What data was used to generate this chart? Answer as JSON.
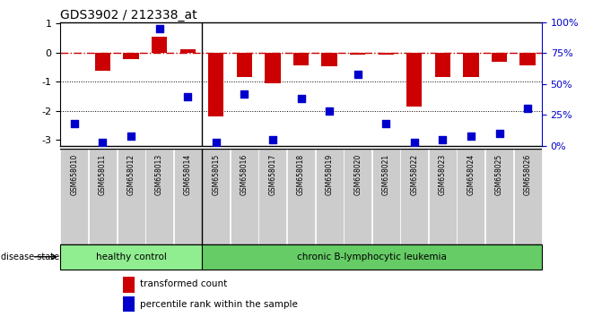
{
  "title": "GDS3902 / 212338_at",
  "samples": [
    "GSM658010",
    "GSM658011",
    "GSM658012",
    "GSM658013",
    "GSM658014",
    "GSM658015",
    "GSM658016",
    "GSM658017",
    "GSM658018",
    "GSM658019",
    "GSM658020",
    "GSM658021",
    "GSM658022",
    "GSM658023",
    "GSM658024",
    "GSM658025",
    "GSM658026"
  ],
  "bar_values": [
    0.0,
    -0.62,
    -0.22,
    0.55,
    0.13,
    -2.2,
    -0.82,
    -1.05,
    -0.42,
    -0.48,
    -0.05,
    -0.05,
    -1.85,
    -0.82,
    -0.82,
    -0.32,
    -0.42
  ],
  "percentile_values": [
    18,
    3,
    8,
    95,
    40,
    3,
    42,
    5,
    38,
    28,
    58,
    18,
    3,
    5,
    8,
    10,
    30
  ],
  "healthy_count": 5,
  "ylim_left": [
    -3.2,
    1.05
  ],
  "ylim_right": [
    0,
    100
  ],
  "bar_color": "#cc0000",
  "dot_color": "#0000cc",
  "healthy_color": "#90ee90",
  "leukemia_color": "#66cc66",
  "sample_bg_color": "#cccccc",
  "refline_y": 0,
  "dotted_lines": [
    -1,
    -2
  ],
  "left_ticks": [
    -3,
    -2,
    -1,
    0,
    1
  ],
  "right_ticks": [
    0,
    25,
    50,
    75,
    100
  ],
  "right_tick_labels": [
    "0%",
    "25%",
    "50%",
    "75%",
    "100%"
  ],
  "disease_state_label": "disease state",
  "healthy_label": "healthy control",
  "leukemia_label": "chronic B-lymphocytic leukemia",
  "legend_bar_label": "transformed count",
  "legend_dot_label": "percentile rank within the sample"
}
